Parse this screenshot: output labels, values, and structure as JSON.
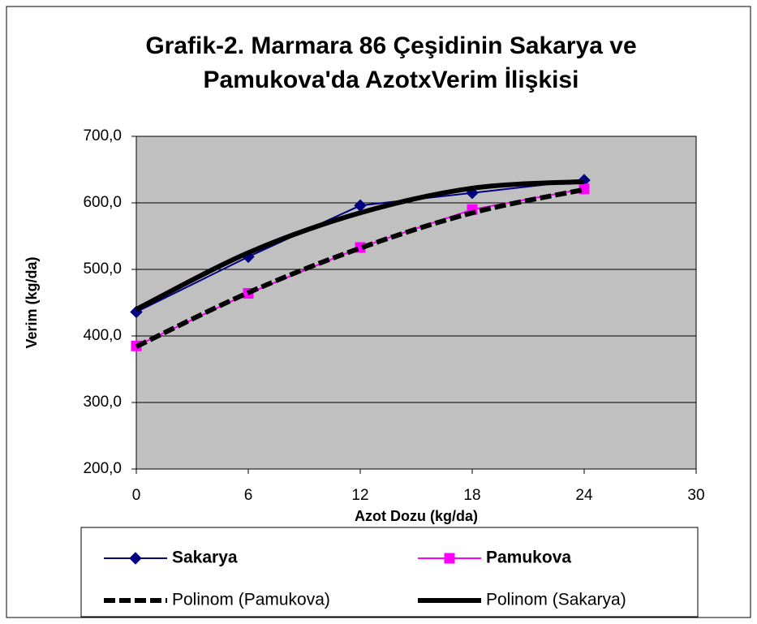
{
  "chart_data": {
    "type": "line",
    "title": "Grafik-2. Marmara 86 Çeşidinin Sakarya ve Pamukova'da AzotxVerim İlişkisi",
    "x_label": "Azot Dozu (kg/da)",
    "y_label": "Verim (kg/da)",
    "x": [
      0,
      6,
      12,
      18,
      24
    ],
    "series": [
      {
        "name": "Sakarya",
        "color": "#000080",
        "values": [
          436,
          519,
          596,
          615,
          634
        ],
        "marker": "diamond",
        "trendline": false,
        "dashed": false
      },
      {
        "name": "Pamukova",
        "color": "#ff00ff",
        "values": [
          385,
          464,
          533,
          590,
          621
        ],
        "marker": "square",
        "trendline": false,
        "dashed": false
      },
      {
        "name": "Polinom (Pamukova)",
        "color": "#000000",
        "values": [
          384,
          465,
          532,
          585,
          620
        ],
        "marker": "none",
        "trendline": true,
        "dashed": true
      },
      {
        "name": "Polinom (Sakarya)",
        "color": "#000000",
        "values": [
          440,
          525,
          585,
          622,
          632
        ],
        "marker": "none",
        "trendline": true,
        "dashed": false
      }
    ],
    "xlim": [
      0,
      30
    ],
    "xticks": [
      0,
      6,
      12,
      18,
      24,
      30
    ],
    "ylim": [
      200,
      700
    ],
    "yticks": [
      {
        "value": 200,
        "label": "200,0"
      },
      {
        "value": 300,
        "label": "300,0"
      },
      {
        "value": 400,
        "label": "400,0"
      },
      {
        "value": 500,
        "label": "500,0"
      },
      {
        "value": 600,
        "label": "600,0"
      },
      {
        "value": 700,
        "label": "700,0"
      }
    ],
    "grid": true,
    "plot_background": "#c0c0c0",
    "legend": "bottom"
  }
}
